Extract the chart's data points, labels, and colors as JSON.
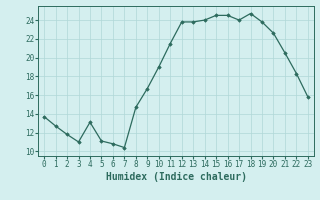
{
  "x": [
    0,
    1,
    2,
    3,
    4,
    5,
    6,
    7,
    8,
    9,
    10,
    11,
    12,
    13,
    14,
    15,
    16,
    17,
    18,
    19,
    20,
    21,
    22,
    23
  ],
  "y": [
    13.7,
    12.7,
    11.8,
    11.0,
    13.1,
    11.1,
    10.8,
    10.4,
    14.7,
    16.7,
    19.0,
    21.5,
    23.8,
    23.8,
    24.0,
    24.5,
    24.5,
    24.0,
    24.7,
    23.8,
    22.6,
    20.5,
    18.3,
    15.8
  ],
  "line_color": "#2d6b5e",
  "marker": "D",
  "markersize": 1.8,
  "linewidth": 0.9,
  "background_color": "#d4efef",
  "grid_color": "#b0d8d8",
  "xlabel": "Humidex (Indice chaleur)",
  "xlabel_fontsize": 7,
  "ylabel_ticks": [
    10,
    12,
    14,
    16,
    18,
    20,
    22,
    24
  ],
  "ylim": [
    9.5,
    25.5
  ],
  "xlim": [
    -0.5,
    23.5
  ],
  "xtick_labels": [
    "0",
    "1",
    "2",
    "3",
    "4",
    "5",
    "6",
    "7",
    "8",
    "9",
    "10",
    "11",
    "12",
    "13",
    "14",
    "15",
    "16",
    "17",
    "18",
    "19",
    "20",
    "21",
    "22",
    "23"
  ],
  "tick_fontsize": 5.5
}
